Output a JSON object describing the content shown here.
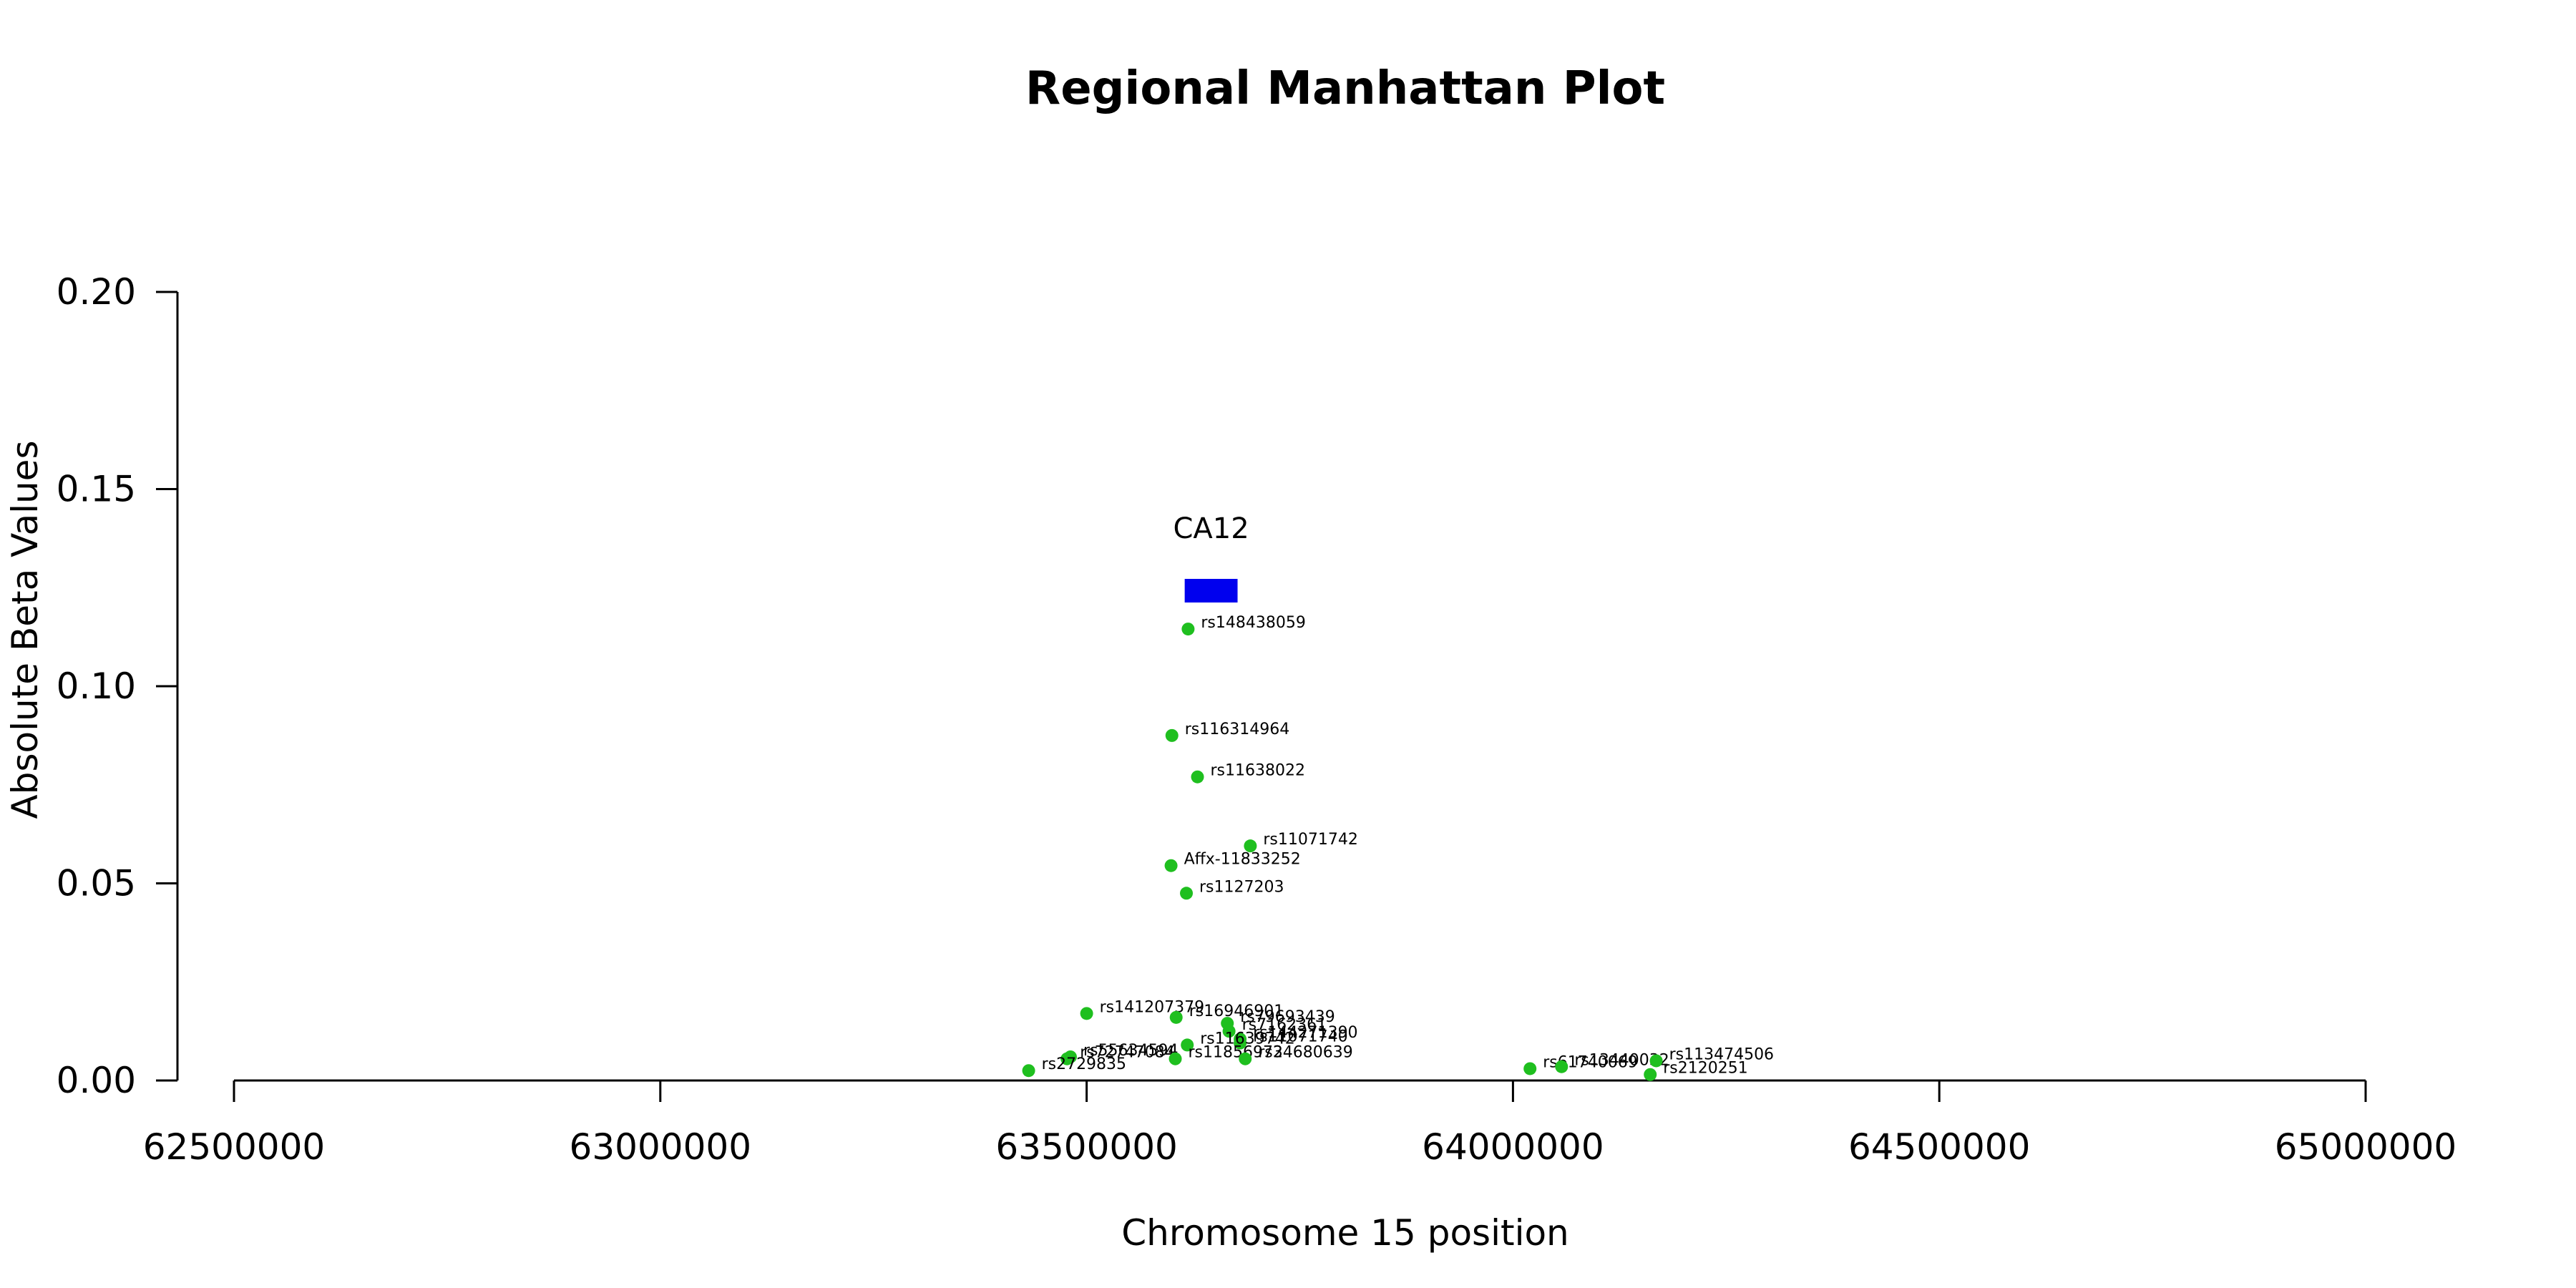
{
  "chart_data": {
    "type": "scatter",
    "title": "Regional Manhattan Plot",
    "xlabel": "Chromosome 15 position",
    "ylabel": "Absolute Beta Values",
    "xlim": [
      62500000,
      65000000
    ],
    "ylim": [
      0,
      0.2
    ],
    "x_ticks": [
      62500000,
      63000000,
      63500000,
      64000000,
      64500000,
      65000000
    ],
    "x_tick_labels": [
      "62500000",
      "63000000",
      "63500000",
      "64000000",
      "64500000",
      "65000000"
    ],
    "y_ticks": [
      0,
      0.05,
      0.1,
      0.15,
      0.2
    ],
    "y_tick_labels": [
      "0.00",
      "0.05",
      "0.10",
      "0.15",
      "0.20"
    ],
    "point_color": "#1fbf1f",
    "points": [
      {
        "label": "rs148438059",
        "x": 63619000,
        "y": 0.1145
      },
      {
        "label": "rs116314964",
        "x": 63600000,
        "y": 0.0875
      },
      {
        "label": "rs11638022",
        "x": 63630000,
        "y": 0.077
      },
      {
        "label": "rs11071742",
        "x": 63692000,
        "y": 0.0595
      },
      {
        "label": "Affx-11833252",
        "x": 63599000,
        "y": 0.0545
      },
      {
        "label": "rs1127203",
        "x": 63617000,
        "y": 0.0475
      },
      {
        "label": "rs141207379",
        "x": 63500000,
        "y": 0.017
      },
      {
        "label": "rs16946901",
        "x": 63605000,
        "y": 0.016
      },
      {
        "label": "rs79693439",
        "x": 63665000,
        "y": 0.0145
      },
      {
        "label": "rs7162361",
        "x": 63667000,
        "y": 0.0125
      },
      {
        "label": "rs144271390",
        "x": 63680000,
        "y": 0.0105
      },
      {
        "label": "rs11071740",
        "x": 63680000,
        "y": 0.0095
      },
      {
        "label": "rs11639742",
        "x": 63618000,
        "y": 0.009
      },
      {
        "label": "rs55634594",
        "x": 63481000,
        "y": 0.006
      },
      {
        "label": "rs72747084",
        "x": 63477000,
        "y": 0.0055
      },
      {
        "label": "rs11856972",
        "x": 63604000,
        "y": 0.0055
      },
      {
        "label": "rs34680639",
        "x": 63686000,
        "y": 0.0055
      },
      {
        "label": "rs2729835",
        "x": 63432000,
        "y": 0.0025
      },
      {
        "label": "rs61740069",
        "x": 64020000,
        "y": 0.003
      },
      {
        "label": "rs13440032",
        "x": 64057000,
        "y": 0.0035
      },
      {
        "label": "rs113474506",
        "x": 64168000,
        "y": 0.005
      },
      {
        "label": "rs2120251",
        "x": 64161000,
        "y": 0.0015
      }
    ],
    "genes": [
      {
        "name": "CA12",
        "start": 63615000,
        "end": 63677000,
        "color": "#0000ee"
      }
    ],
    "legend": "none",
    "grid": false
  }
}
